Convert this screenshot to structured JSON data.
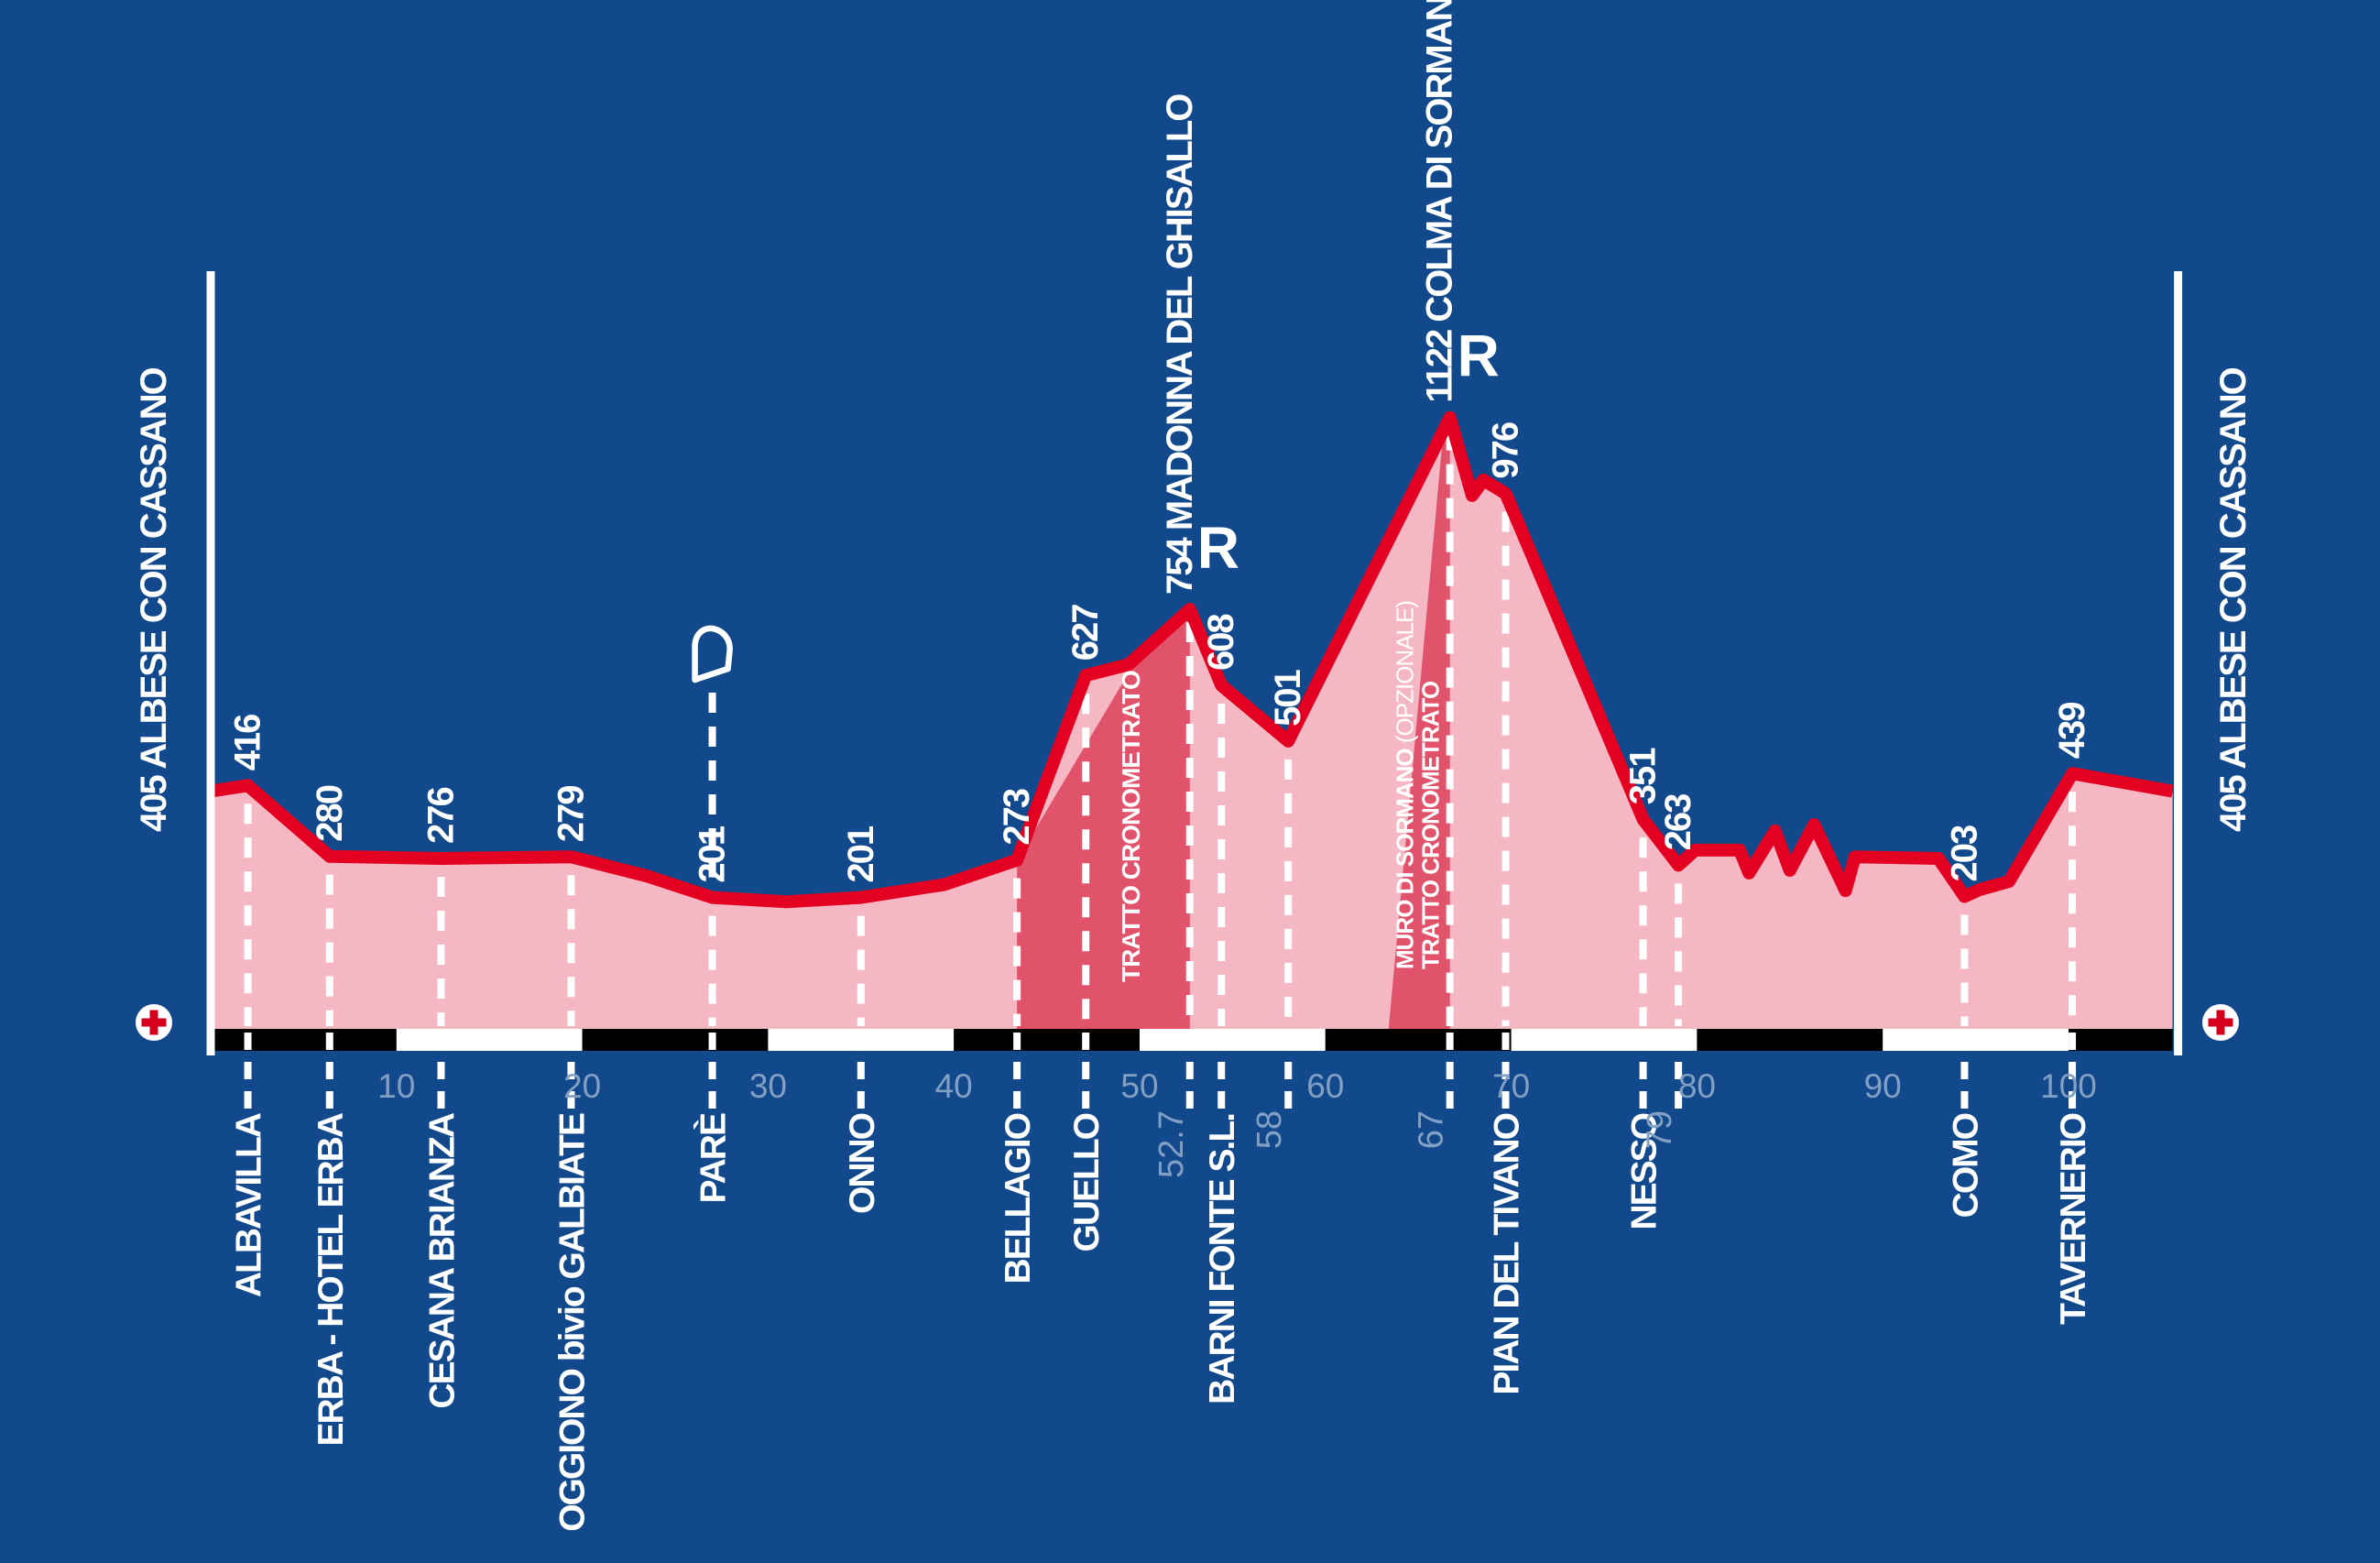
{
  "colors": {
    "background": "#12498c",
    "pink_area": "#f6b7c4",
    "timed_band": "#e0536a",
    "profile_red": "#e30020",
    "white": "#ffffff",
    "gray_label": "#82a0c3",
    "axis_black": "#000000",
    "cross_red": "#d6001c"
  },
  "terminals": {
    "start": {
      "label": "ALBESE CON CASSANO",
      "elevation": "405"
    },
    "finish": {
      "label": "ALBESE CON CASSANO",
      "elevation": "405"
    }
  },
  "axis": {
    "ticks": [
      {
        "km": 10,
        "label": "10"
      },
      {
        "km": 20,
        "label": "20"
      },
      {
        "km": 30,
        "label": "30"
      },
      {
        "km": 40,
        "label": "40"
      },
      {
        "km": 50,
        "label": "50"
      },
      {
        "km": 60,
        "label": "60"
      },
      {
        "km": 70,
        "label": "70"
      },
      {
        "km": 80,
        "label": "80"
      },
      {
        "km": 90,
        "label": "90"
      },
      {
        "km": 100,
        "label": "100"
      }
    ],
    "total_km": 105.6
  },
  "waypoints": [
    {
      "name": "ALBAVILLA",
      "km": 2.0,
      "elevation": "416"
    },
    {
      "name": "ERBA - HOTEL ERBA",
      "km": 6.4,
      "elevation": "280"
    },
    {
      "name": "CESANA BRIANZA",
      "km": 12.4,
      "elevation": "276"
    },
    {
      "name": "OGGIONO bivio GALBIATE",
      "km": 19.4,
      "elevation": "279"
    },
    {
      "name": "PARÈ",
      "km": 27.0,
      "elevation": "201",
      "flag": true
    },
    {
      "name": "ONNO",
      "km": 35.0,
      "elevation": "201"
    },
    {
      "name": "BELLAGIO",
      "km": 43.4,
      "elevation": "273"
    },
    {
      "name": "GUELLO",
      "km": 47.1,
      "elevation": "627"
    },
    {
      "name": "MADONNA DEL GHISALLO",
      "km": 52.7,
      "elevation": "754",
      "summit": true,
      "badge": "R",
      "gray_km": "52.7"
    },
    {
      "name": "BARNI FONTE S.L.",
      "km": 54.4,
      "elevation": "608"
    },
    {
      "name": null,
      "km": 58.0,
      "elevation": "501",
      "gray_km": "58"
    },
    {
      "name": "COLMA DI SORMANO",
      "km": 66.7,
      "elevation": "1122",
      "summit": true,
      "badge": "R",
      "gray_km": "67"
    },
    {
      "name": "PIAN DEL TIVANO",
      "km": 69.7,
      "elevation": "976"
    },
    {
      "name": "NESSO",
      "km": 77.1,
      "elevation": "351"
    },
    {
      "name": null,
      "km": 79.0,
      "elevation": "263",
      "gray_km": "79"
    },
    {
      "name": "COMO",
      "km": 94.4,
      "elevation": "203"
    },
    {
      "name": "TAVERNERIO",
      "km": 100.2,
      "elevation": "439"
    }
  ],
  "bands": [
    {
      "from_km": 43.4,
      "to_km": 52.7,
      "edge_start": "profile",
      "meet_km": 50.0,
      "label_x_km": 50.0,
      "label_bottom_y": 1072,
      "font_size": 28,
      "lines": [
        {
          "bold": "TRATTO CRONOMETRATO",
          "regular": ""
        }
      ]
    },
    {
      "from_km": 63.4,
      "to_km": 66.7,
      "edge_start": "base",
      "meet_km": 66.35,
      "label_x_km": 64.72,
      "label_bottom_y": 1058,
      "font_size": 26,
      "lines": [
        {
          "bold": "MURO DI SORMANO ",
          "regular": "(OPZIONALE)"
        },
        {
          "bold": "TRATTO CRONOMETRATO",
          "regular": ""
        }
      ]
    }
  ],
  "icons": {
    "medical": "red-cross-icon",
    "feed_zone": "flag-icon"
  },
  "chart_data": {
    "type": "area",
    "title": "",
    "xlabel": "km",
    "ylabel": "elevation_m",
    "x_range": [
      0,
      105.6
    ],
    "grid": false,
    "legend": false,
    "profile": [
      [
        0,
        405
      ],
      [
        2,
        416
      ],
      [
        6.4,
        280
      ],
      [
        12.4,
        276
      ],
      [
        19.4,
        279
      ],
      [
        23.5,
        242
      ],
      [
        27,
        201
      ],
      [
        31,
        193
      ],
      [
        35,
        201
      ],
      [
        39.5,
        226
      ],
      [
        43.4,
        273
      ],
      [
        47.1,
        627
      ],
      [
        49.4,
        648
      ],
      [
        52.7,
        754
      ],
      [
        54.4,
        608
      ],
      [
        58,
        501
      ],
      [
        66.7,
        1122
      ],
      [
        67.9,
        972
      ],
      [
        68.5,
        1002
      ],
      [
        69.7,
        976
      ],
      [
        70.4,
        918
      ],
      [
        77.1,
        351
      ],
      [
        79,
        263
      ],
      [
        79.9,
        292
      ],
      [
        82.3,
        292
      ],
      [
        82.8,
        248
      ],
      [
        84.2,
        329
      ],
      [
        85,
        253
      ],
      [
        86.3,
        341
      ],
      [
        88,
        214
      ],
      [
        88.5,
        279
      ],
      [
        93,
        276
      ],
      [
        94.4,
        203
      ],
      [
        95.2,
        216
      ],
      [
        96.8,
        232
      ],
      [
        100.2,
        439
      ],
      [
        105.6,
        405
      ]
    ],
    "annotations": [
      {
        "km": 2.0,
        "text": "ALBAVILLA 416"
      },
      {
        "km": 6.4,
        "text": "ERBA - HOTEL ERBA 280"
      },
      {
        "km": 12.4,
        "text": "CESANA BRIANZA 276"
      },
      {
        "km": 19.4,
        "text": "OGGIONO bivio GALBIATE 279"
      },
      {
        "km": 27.0,
        "text": "PARÈ 201"
      },
      {
        "km": 35.0,
        "text": "ONNO 201"
      },
      {
        "km": 43.4,
        "text": "BELLAGIO 273"
      },
      {
        "km": 47.1,
        "text": "GUELLO 627"
      },
      {
        "km": 52.7,
        "text": "754 MADONNA DEL GHISALLO R"
      },
      {
        "km": 54.4,
        "text": "BARNI FONTE S.L. 608"
      },
      {
        "km": 58.0,
        "text": "501"
      },
      {
        "km": 66.7,
        "text": "1122 COLMA DI SORMANO R"
      },
      {
        "km": 69.7,
        "text": "PIAN DEL TIVANO 976"
      },
      {
        "km": 77.1,
        "text": "NESSO 351"
      },
      {
        "km": 79.0,
        "text": "263"
      },
      {
        "km": 94.4,
        "text": "COMO 203"
      },
      {
        "km": 100.2,
        "text": "TAVERNERIO 439"
      },
      {
        "km": 0,
        "text": "405 ALBESE CON CASSANO"
      },
      {
        "km": 105.6,
        "text": "405 ALBESE CON CASSANO"
      }
    ]
  }
}
